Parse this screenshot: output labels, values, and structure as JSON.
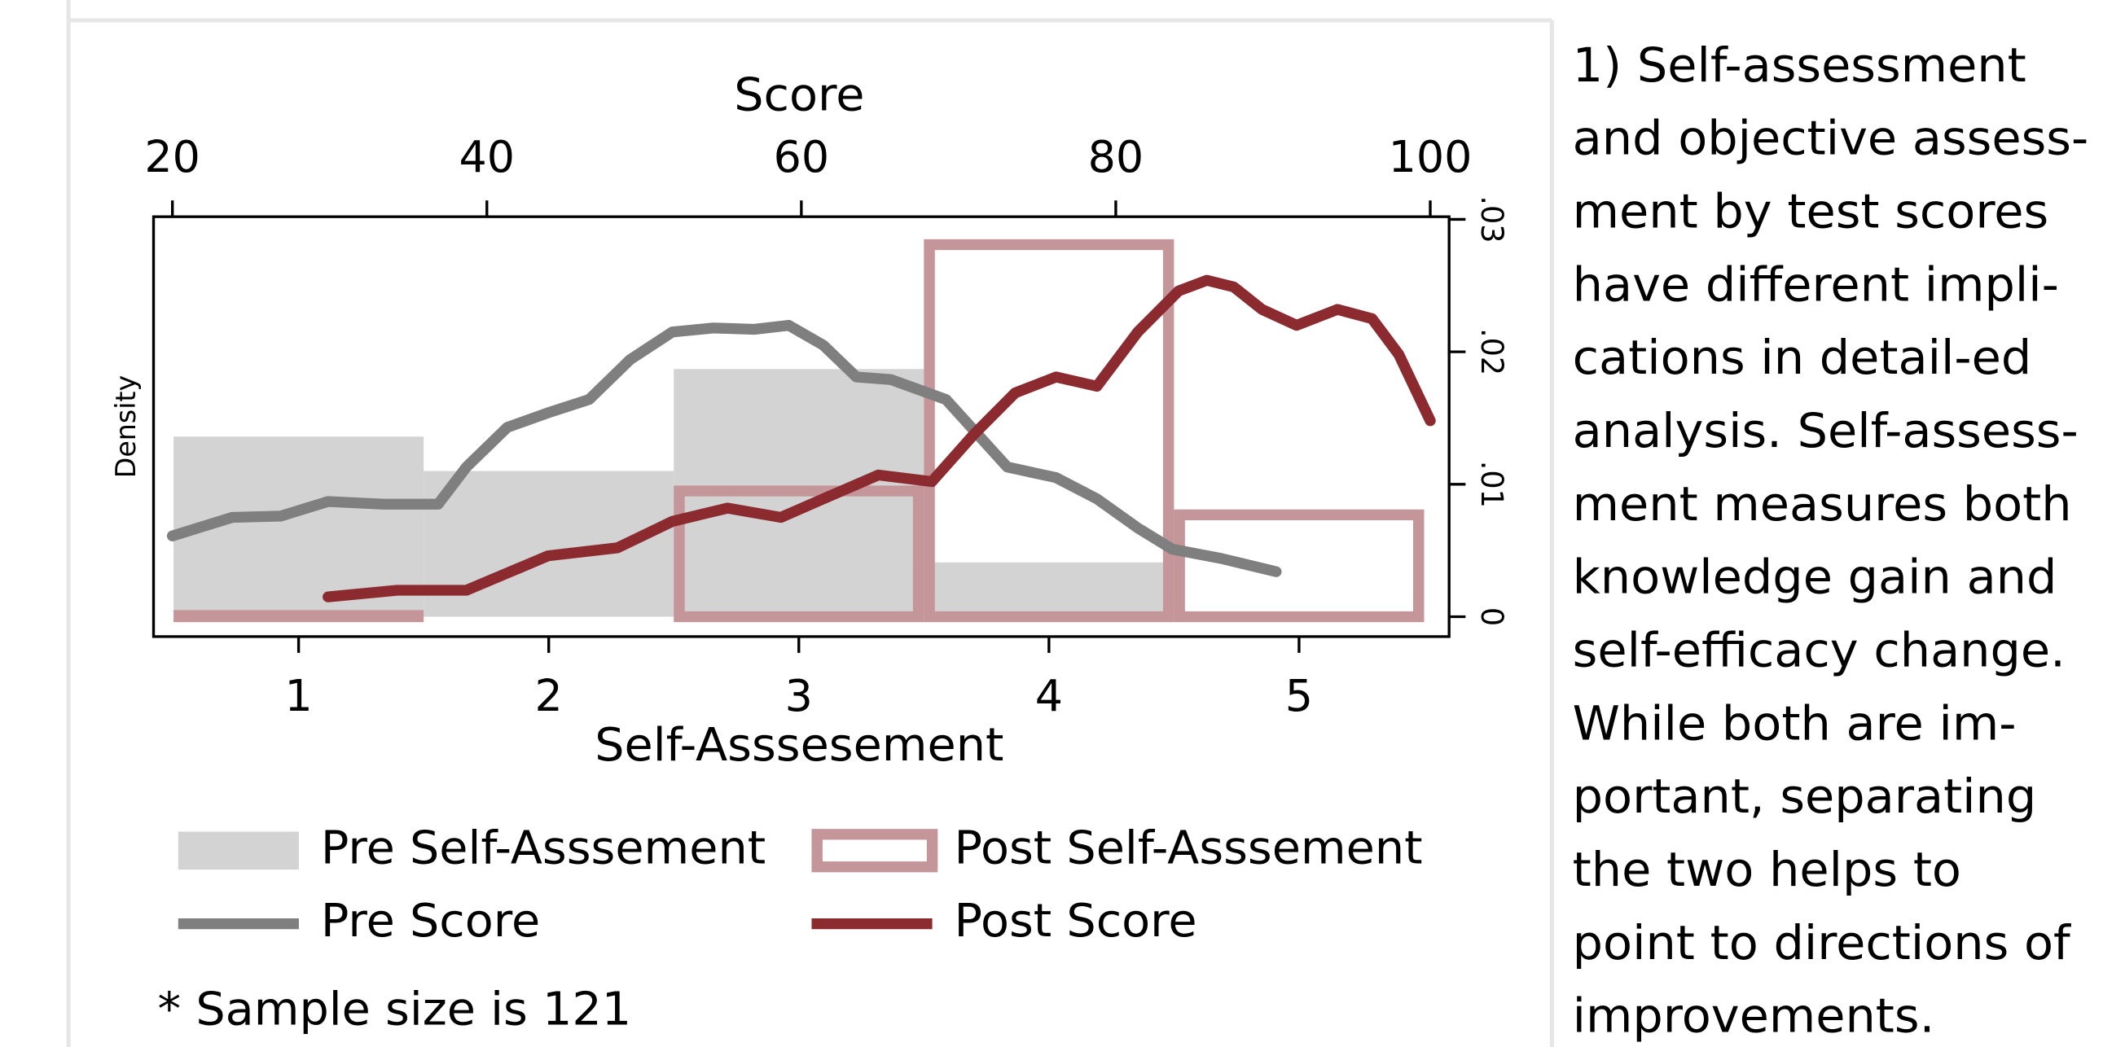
{
  "chart_data": [
    {
      "type": "histogram",
      "x_label": "Self-Asssesement",
      "y_label": "Density",
      "bins": [
        0.5,
        1.5,
        2.5,
        3.5,
        4.5,
        5.5
      ],
      "xlim": [
        0.42,
        5.6
      ],
      "xticks": [
        1,
        2,
        3,
        4,
        5
      ],
      "ylim": [
        -0.0015,
        0.0302
      ],
      "yticks": [
        0,
        {
          "value": 0.01,
          "label": ".01"
        },
        {
          "value": 0.02,
          "label": ".02"
        },
        {
          "value": 0.03,
          "label": ".03"
        }
      ],
      "series": [
        {
          "name": "Pre Self-Asssement",
          "color": "#d3d3d3",
          "style": "filled",
          "values": [
            0.0136,
            0.011,
            0.0187,
            0.0041,
            0
          ]
        },
        {
          "name": "Post Self-Asssement",
          "color": "#c4969a",
          "style": "outline",
          "values": [
            0.0005,
            0,
            0.0099,
            0.0285,
            0.0081
          ]
        }
      ]
    },
    {
      "type": "line",
      "x_label": "Score",
      "xlim": [
        18.8,
        101.2
      ],
      "xticks": [
        20,
        40,
        60,
        80,
        100
      ],
      "series": [
        {
          "name": "Pre Score",
          "color": "#7f7f7f",
          "x": [
            20,
            23.8,
            26.9,
            29.9,
            33.4,
            36.9,
            38.7,
            41.3,
            43.9,
            46.5,
            49.1,
            51.8,
            54.4,
            57,
            59.2,
            61.4,
            63.5,
            65.7,
            69.2,
            73.1,
            76.2,
            78.8,
            81.4,
            83.6,
            86.7,
            90.2
          ],
          "values": [
            0.0061,
            0.0075,
            0.0076,
            0.0087,
            0.0085,
            0.0085,
            0.0113,
            0.0143,
            0.0154,
            0.0164,
            0.0194,
            0.0215,
            0.0218,
            0.0217,
            0.022,
            0.0205,
            0.0181,
            0.0179,
            0.0164,
            0.0113,
            0.0105,
            0.0089,
            0.0067,
            0.0051,
            0.0044,
            0.0034
          ]
        },
        {
          "name": "Post Score",
          "color": "#8b2a2f",
          "x": [
            29.9,
            34.3,
            38.7,
            43.9,
            48.3,
            51.8,
            55.3,
            58.7,
            61.4,
            64.9,
            68.3,
            71,
            73.6,
            76.2,
            78.8,
            81.4,
            84,
            85.8,
            87.5,
            89.3,
            91.5,
            94.1,
            96.3,
            98,
            100
          ],
          "values": [
            0.0015,
            0.002,
            0.002,
            0.0046,
            0.0052,
            0.0072,
            0.0082,
            0.0075,
            0.0089,
            0.0107,
            0.0102,
            0.0138,
            0.0169,
            0.0181,
            0.0174,
            0.0215,
            0.0246,
            0.0254,
            0.0249,
            0.0232,
            0.022,
            0.0232,
            0.0225,
            0.0198,
            0.0148
          ]
        }
      ]
    }
  ],
  "note": "* Sample size is 121",
  "paragraph": [
    "1) Self-assessment",
    "and objective assess-",
    "ment by test scores",
    "have different impli-",
    "cations in detail-ed",
    "analysis. Self-assess-",
    "ment measures both",
    "knowledge gain and",
    "self-efficacy change.",
    "While both are im-",
    "portant, separating",
    "the two helps to",
    "point to directions of",
    "improvements."
  ]
}
